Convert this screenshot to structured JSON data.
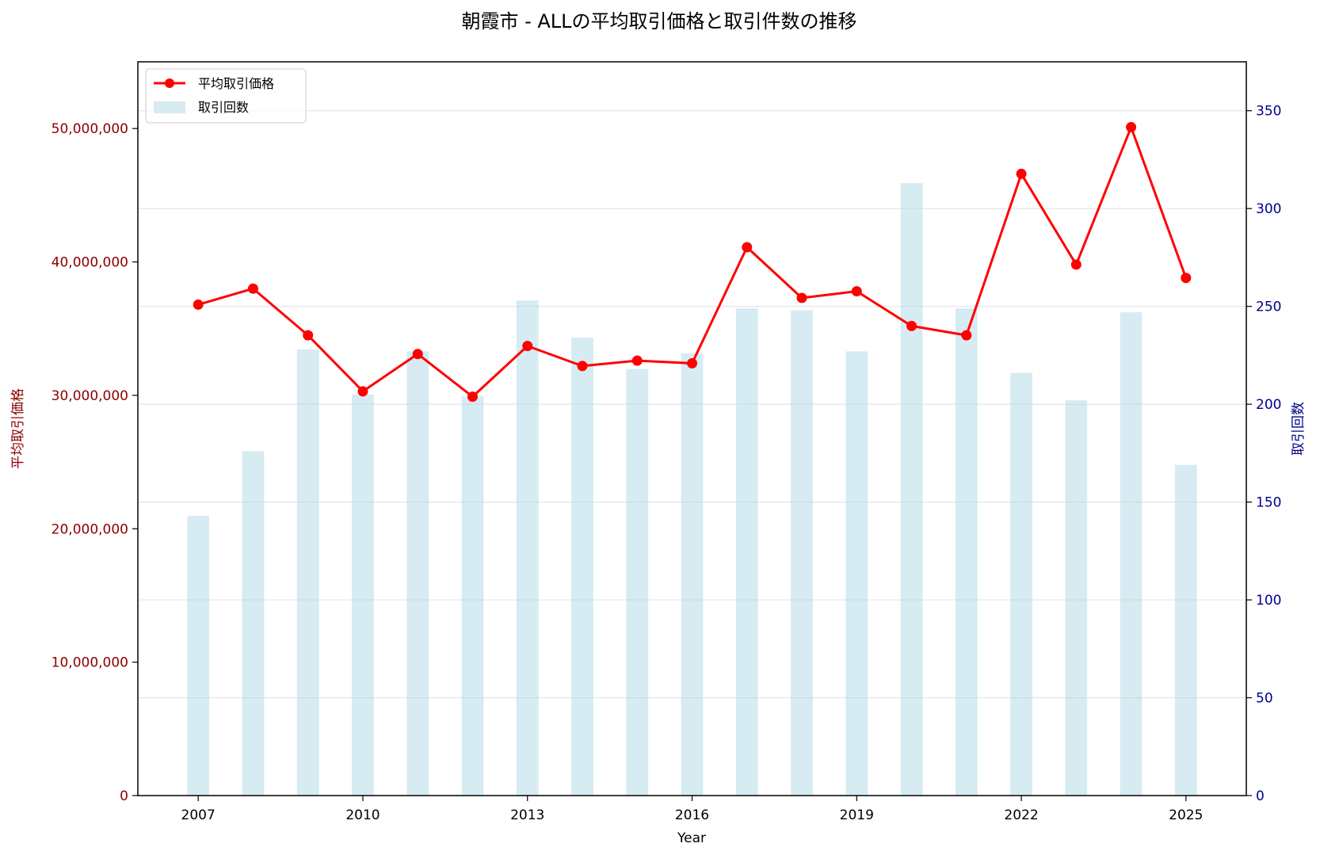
{
  "chart_data": {
    "type": "bar+line",
    "title": "朝霞市 - ALLの平均取引価格と取引件数の推移",
    "xlabel": "Year",
    "ylabel_left": "平均取引価格",
    "ylabel_right": "取引回数",
    "x_ticks": [
      "2007",
      "2010",
      "2013",
      "2016",
      "2019",
      "2022",
      "2025"
    ],
    "xlim": [
      2005.9,
      2026.1
    ],
    "ylim_left": [
      0,
      55000000
    ],
    "ylim_right": [
      0,
      375
    ],
    "left_ticks": [
      "0",
      "10,000,000",
      "20,000,000",
      "30,000,000",
      "40,000,000",
      "50,000,000"
    ],
    "right_ticks": [
      "0",
      "50",
      "100",
      "150",
      "200",
      "250",
      "300",
      "350"
    ],
    "legend": {
      "placement": "top-left",
      "entries": [
        "平均取引価格",
        "取引回数"
      ]
    },
    "grid": "horizontal",
    "years": [
      2007,
      2008,
      2009,
      2010,
      2011,
      2012,
      2013,
      2014,
      2015,
      2016,
      2017,
      2018,
      2019,
      2020,
      2021,
      2022,
      2023,
      2024,
      2025
    ],
    "series": [
      {
        "name": "平均取引価格",
        "type": "line",
        "axis": "left",
        "color": "#ff0000",
        "values": [
          36800000,
          38000000,
          34500000,
          30300000,
          33100000,
          29900000,
          33700000,
          32200000,
          32600000,
          32400000,
          41100000,
          37300000,
          37800000,
          35200000,
          34500000,
          46600000,
          39800000,
          50100000,
          38800000
        ]
      },
      {
        "name": "取引回数",
        "type": "bar",
        "axis": "right",
        "color": "#add8e6",
        "values": [
          143,
          176,
          228,
          205,
          227,
          204,
          253,
          234,
          218,
          226,
          249,
          248,
          227,
          313,
          249,
          216,
          202,
          247,
          169
        ]
      }
    ],
    "colors": {
      "left_axis": "#8b0000",
      "right_axis": "#00008b",
      "line": "#ff0000",
      "bar": "#add8e6"
    }
  }
}
